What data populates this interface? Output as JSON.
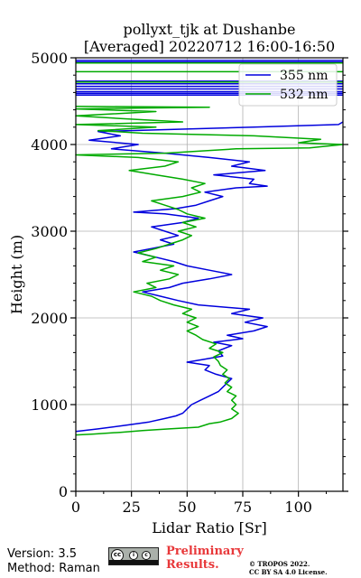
{
  "chart_data": {
    "type": "line",
    "title_line1": "pollyxt_tjk at Dushanbe",
    "title_line2": "[Averaged] 20220712 16:00-16:50",
    "xlabel": "Lidar Ratio [Sr]",
    "ylabel": "Height (m)",
    "xlim": [
      0,
      120
    ],
    "ylim": [
      0,
      5000
    ],
    "xticks": [
      0,
      25,
      50,
      75,
      100
    ],
    "yticks": [
      0,
      1000,
      2000,
      3000,
      4000,
      5000
    ],
    "grid": true,
    "legend_position": "top-right",
    "series": [
      {
        "name": "355 nm",
        "color": "#0000dd",
        "points": [
          [
            0,
            690
          ],
          [
            10,
            720
          ],
          [
            22,
            760
          ],
          [
            33,
            800
          ],
          [
            40,
            840
          ],
          [
            45,
            870
          ],
          [
            48,
            900
          ],
          [
            50,
            950
          ],
          [
            52,
            1000
          ],
          [
            56,
            1050
          ],
          [
            60,
            1100
          ],
          [
            64,
            1150
          ],
          [
            66,
            1200
          ],
          [
            68,
            1250
          ],
          [
            70,
            1300
          ],
          [
            63,
            1350
          ],
          [
            58,
            1400
          ],
          [
            60,
            1450
          ],
          [
            50,
            1490
          ],
          [
            57,
            1520
          ],
          [
            66,
            1560
          ],
          [
            64,
            1620
          ],
          [
            70,
            1680
          ],
          [
            62,
            1720
          ],
          [
            75,
            1760
          ],
          [
            68,
            1800
          ],
          [
            80,
            1850
          ],
          [
            86,
            1900
          ],
          [
            76,
            1950
          ],
          [
            84,
            2000
          ],
          [
            70,
            2050
          ],
          [
            78,
            2100
          ],
          [
            55,
            2150
          ],
          [
            46,
            2200
          ],
          [
            38,
            2250
          ],
          [
            30,
            2300
          ],
          [
            42,
            2350
          ],
          [
            48,
            2400
          ],
          [
            60,
            2450
          ],
          [
            70,
            2500
          ],
          [
            60,
            2550
          ],
          [
            50,
            2600
          ],
          [
            44,
            2650
          ],
          [
            36,
            2700
          ],
          [
            26,
            2760
          ],
          [
            34,
            2800
          ],
          [
            44,
            2850
          ],
          [
            38,
            2900
          ],
          [
            46,
            2950
          ],
          [
            40,
            3000
          ],
          [
            34,
            3050
          ],
          [
            48,
            3100
          ],
          [
            55,
            3150
          ],
          [
            40,
            3200
          ],
          [
            26,
            3220
          ],
          [
            45,
            3260
          ],
          [
            54,
            3300
          ],
          [
            60,
            3350
          ],
          [
            66,
            3400
          ],
          [
            58,
            3450
          ],
          [
            72,
            3500
          ],
          [
            86,
            3520
          ],
          [
            78,
            3550
          ],
          [
            80,
            3600
          ],
          [
            62,
            3650
          ],
          [
            85,
            3700
          ],
          [
            70,
            3750
          ],
          [
            78,
            3800
          ],
          [
            60,
            3850
          ],
          [
            40,
            3900
          ],
          [
            16,
            3950
          ],
          [
            28,
            4000
          ],
          [
            6,
            4050
          ],
          [
            20,
            4100
          ],
          [
            10,
            4150
          ],
          [
            80,
            4200
          ],
          [
            118,
            4230
          ],
          [
            120,
            4260
          ]
        ],
        "top_lines": [
          4570,
          4590,
          4610,
          4640,
          4670,
          4700,
          4730,
          4950,
          4970
        ]
      },
      {
        "name": "532 nm",
        "color": "#00aa00",
        "points": [
          [
            0,
            650
          ],
          [
            8,
            660
          ],
          [
            20,
            680
          ],
          [
            30,
            700
          ],
          [
            42,
            720
          ],
          [
            55,
            740
          ],
          [
            60,
            780
          ],
          [
            65,
            800
          ],
          [
            70,
            840
          ],
          [
            73,
            900
          ],
          [
            70,
            950
          ],
          [
            72,
            1000
          ],
          [
            70,
            1050
          ],
          [
            72,
            1100
          ],
          [
            68,
            1150
          ],
          [
            70,
            1200
          ],
          [
            67,
            1250
          ],
          [
            69,
            1300
          ],
          [
            66,
            1350
          ],
          [
            68,
            1400
          ],
          [
            65,
            1450
          ],
          [
            64,
            1500
          ],
          [
            62,
            1550
          ],
          [
            66,
            1600
          ],
          [
            60,
            1650
          ],
          [
            63,
            1700
          ],
          [
            57,
            1750
          ],
          [
            54,
            1800
          ],
          [
            50,
            1850
          ],
          [
            55,
            1900
          ],
          [
            50,
            1950
          ],
          [
            54,
            2000
          ],
          [
            48,
            2050
          ],
          [
            52,
            2100
          ],
          [
            44,
            2150
          ],
          [
            38,
            2200
          ],
          [
            34,
            2250
          ],
          [
            26,
            2300
          ],
          [
            36,
            2350
          ],
          [
            32,
            2400
          ],
          [
            42,
            2450
          ],
          [
            46,
            2500
          ],
          [
            38,
            2550
          ],
          [
            44,
            2600
          ],
          [
            30,
            2650
          ],
          [
            36,
            2700
          ],
          [
            28,
            2750
          ],
          [
            36,
            2800
          ],
          [
            42,
            2850
          ],
          [
            48,
            2900
          ],
          [
            52,
            2950
          ],
          [
            46,
            3000
          ],
          [
            54,
            3050
          ],
          [
            48,
            3100
          ],
          [
            58,
            3150
          ],
          [
            50,
            3200
          ],
          [
            46,
            3250
          ],
          [
            40,
            3300
          ],
          [
            34,
            3350
          ],
          [
            48,
            3400
          ],
          [
            56,
            3450
          ],
          [
            52,
            3500
          ],
          [
            58,
            3550
          ],
          [
            48,
            3600
          ],
          [
            36,
            3650
          ],
          [
            24,
            3700
          ],
          [
            40,
            3750
          ],
          [
            46,
            3800
          ],
          [
            28,
            3850
          ],
          [
            0,
            3880
          ],
          [
            40,
            3900
          ],
          [
            72,
            3950
          ],
          [
            105,
            3960
          ],
          [
            120,
            4000
          ],
          [
            100,
            4020
          ],
          [
            110,
            4060
          ],
          [
            80,
            4100
          ],
          [
            30,
            4130
          ],
          [
            10,
            4160
          ],
          [
            36,
            4200
          ],
          [
            0,
            4230
          ],
          [
            48,
            4260
          ],
          [
            20,
            4300
          ],
          [
            0,
            4330
          ],
          [
            36,
            4380
          ],
          [
            0,
            4410
          ],
          [
            60,
            4430
          ],
          [
            0,
            4440
          ]
        ],
        "top_lines": [
          4720,
          4840,
          4940
        ]
      }
    ]
  },
  "footer": {
    "version": "Version: 3.5",
    "method": "Method: Raman",
    "prelim_line1": "Preliminary",
    "prelim_line2": "Results.",
    "copyright_line1": "© TROPOS 2022.",
    "copyright_line2": "CC BY SA 4.0 License."
  }
}
